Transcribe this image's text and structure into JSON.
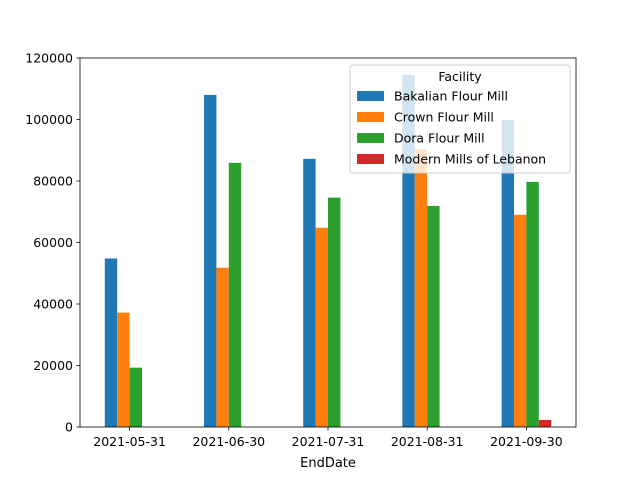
{
  "chart_data": {
    "type": "bar",
    "xlabel": "EndDate",
    "ylabel": "",
    "ylim": [
      0,
      120000
    ],
    "yticks": [
      0,
      20000,
      40000,
      60000,
      80000,
      100000,
      120000
    ],
    "categories": [
      "2021-05-31",
      "2021-06-30",
      "2021-07-31",
      "2021-08-31",
      "2021-09-30"
    ],
    "series": [
      {
        "name": "Bakalian Flour Mill",
        "color": "#1f77b4",
        "values": [
          54800,
          108000,
          87200,
          114500,
          99800
        ]
      },
      {
        "name": "Crown Flour Mill",
        "color": "#ff7f0e",
        "values": [
          37200,
          51800,
          64800,
          90300,
          69000
        ]
      },
      {
        "name": "Dora Flour Mill",
        "color": "#2ca02c",
        "values": [
          19300,
          85900,
          74600,
          71900,
          79700
        ]
      },
      {
        "name": "Modern Mills of Lebanon",
        "color": "#d62728",
        "values": [
          0,
          0,
          0,
          0,
          2300
        ]
      }
    ],
    "legend": {
      "title": "Facility",
      "placement": "top-right"
    },
    "grid": false
  }
}
